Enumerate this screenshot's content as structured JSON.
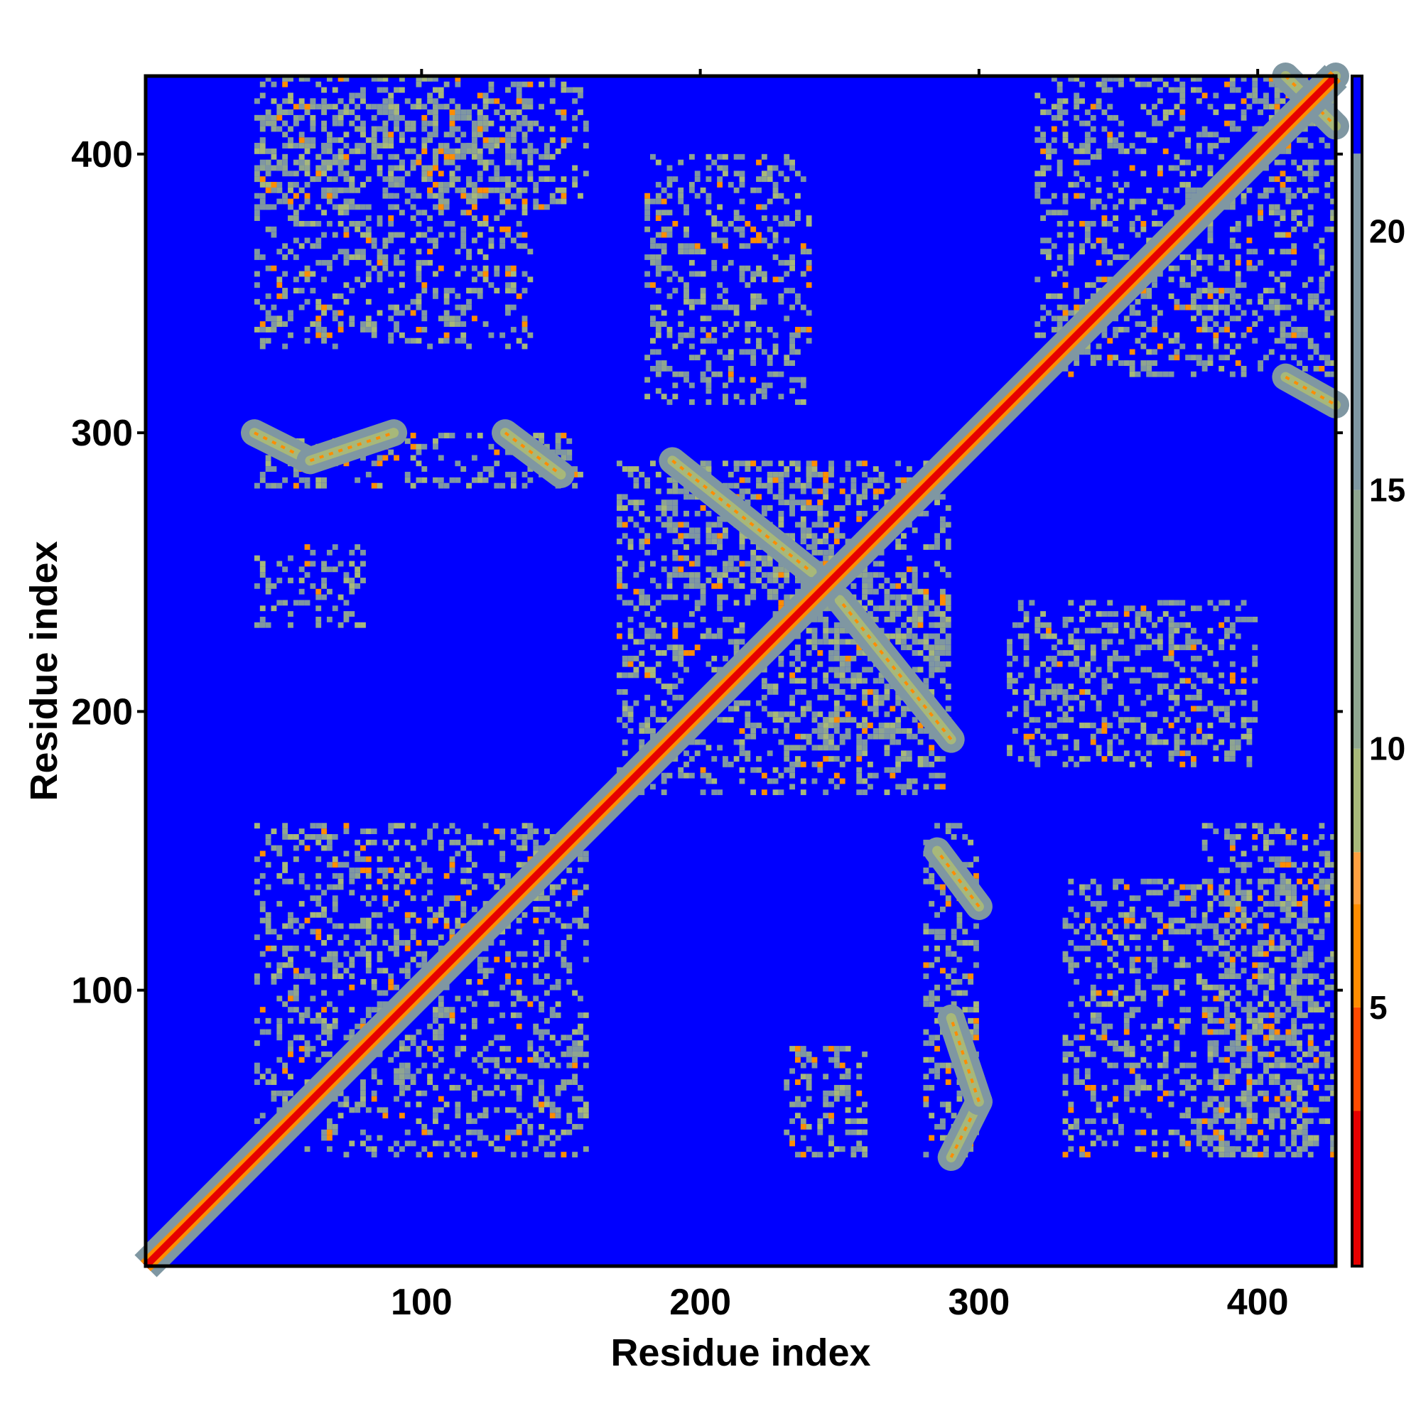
{
  "chart_data": {
    "type": "heatmap",
    "title": "",
    "xlabel": "Residue index",
    "ylabel": "Residue index",
    "xlim": [
      1,
      428
    ],
    "ylim": [
      1,
      428
    ],
    "x_ticks": [
      100,
      200,
      300,
      400
    ],
    "y_ticks": [
      100,
      200,
      300,
      400
    ],
    "x_tick_labels": [
      "100",
      "200",
      "300",
      "400"
    ],
    "y_tick_labels": [
      "100",
      "200",
      "300",
      "400"
    ],
    "colorbar": {
      "range": [
        0,
        23
      ],
      "ticks": [
        5,
        10,
        15,
        20
      ],
      "tick_labels": [
        "5",
        "10",
        "15",
        "20"
      ],
      "colors": [
        {
          "from": 0,
          "to": 3,
          "color": "#e60000"
        },
        {
          "from": 3,
          "to": 5,
          "color": "#ff4a00"
        },
        {
          "from": 5,
          "to": 7,
          "color": "#ff8c00"
        },
        {
          "from": 7,
          "to": 8,
          "color": "#ffa040"
        },
        {
          "from": 8,
          "to": 10,
          "color": "#a7b87a"
        },
        {
          "from": 10,
          "to": 15,
          "color": "#8fa590"
        },
        {
          "from": 15,
          "to": 21.5,
          "color": "#7f97a2"
        },
        {
          "from": 21.5,
          "to": 23,
          "color": "#0000ff"
        }
      ]
    },
    "background_value": 23,
    "diagonal_value": 1,
    "contact_blocks": [
      {
        "x": [
          40,
          160
        ],
        "y": [
          40,
          160
        ]
      },
      {
        "x": [
          320,
          428
        ],
        "y": [
          320,
          428
        ]
      },
      {
        "x": [
          170,
          290
        ],
        "y": [
          170,
          290
        ]
      },
      {
        "x": [
          40,
          160
        ],
        "y": [
          280,
          300
        ]
      },
      {
        "x": [
          280,
          300
        ],
        "y": [
          40,
          160
        ]
      },
      {
        "x": [
          40,
          160
        ],
        "y": [
          380,
          428
        ]
      },
      {
        "x": [
          380,
          428
        ],
        "y": [
          40,
          160
        ]
      },
      {
        "x": [
          180,
          240
        ],
        "y": [
          310,
          400
        ]
      },
      {
        "x": [
          310,
          400
        ],
        "y": [
          180,
          240
        ]
      },
      {
        "x": [
          240,
          290
        ],
        "y": [
          190,
          250
        ]
      },
      {
        "x": [
          190,
          250
        ],
        "y": [
          240,
          290
        ]
      },
      {
        "x": [
          40,
          80
        ],
        "y": [
          230,
          260
        ]
      },
      {
        "x": [
          230,
          260
        ],
        "y": [
          40,
          80
        ]
      },
      {
        "x": [
          330,
          420
        ],
        "y": [
          40,
          140
        ]
      },
      {
        "x": [
          40,
          140
        ],
        "y": [
          330,
          420
        ]
      }
    ],
    "contact_lines": [
      {
        "x1": 40,
        "y1": 300,
        "x2": 60,
        "y2": 290
      },
      {
        "x1": 60,
        "y1": 290,
        "x2": 90,
        "y2": 300
      },
      {
        "x1": 130,
        "y1": 300,
        "x2": 150,
        "y2": 285
      },
      {
        "x1": 290,
        "y1": 40,
        "x2": 300,
        "y2": 60
      },
      {
        "x1": 300,
        "y1": 60,
        "x2": 290,
        "y2": 90
      },
      {
        "x1": 300,
        "y1": 130,
        "x2": 285,
        "y2": 150
      },
      {
        "x1": 190,
        "y1": 290,
        "x2": 240,
        "y2": 250
      },
      {
        "x1": 290,
        "y1": 190,
        "x2": 250,
        "y2": 240
      },
      {
        "x1": 320,
        "y1": 320,
        "x2": 428,
        "y2": 428
      },
      {
        "x1": 410,
        "y1": 428,
        "x2": 428,
        "y2": 410
      },
      {
        "x1": 410,
        "y1": 320,
        "x2": 428,
        "y2": 310
      }
    ]
  }
}
